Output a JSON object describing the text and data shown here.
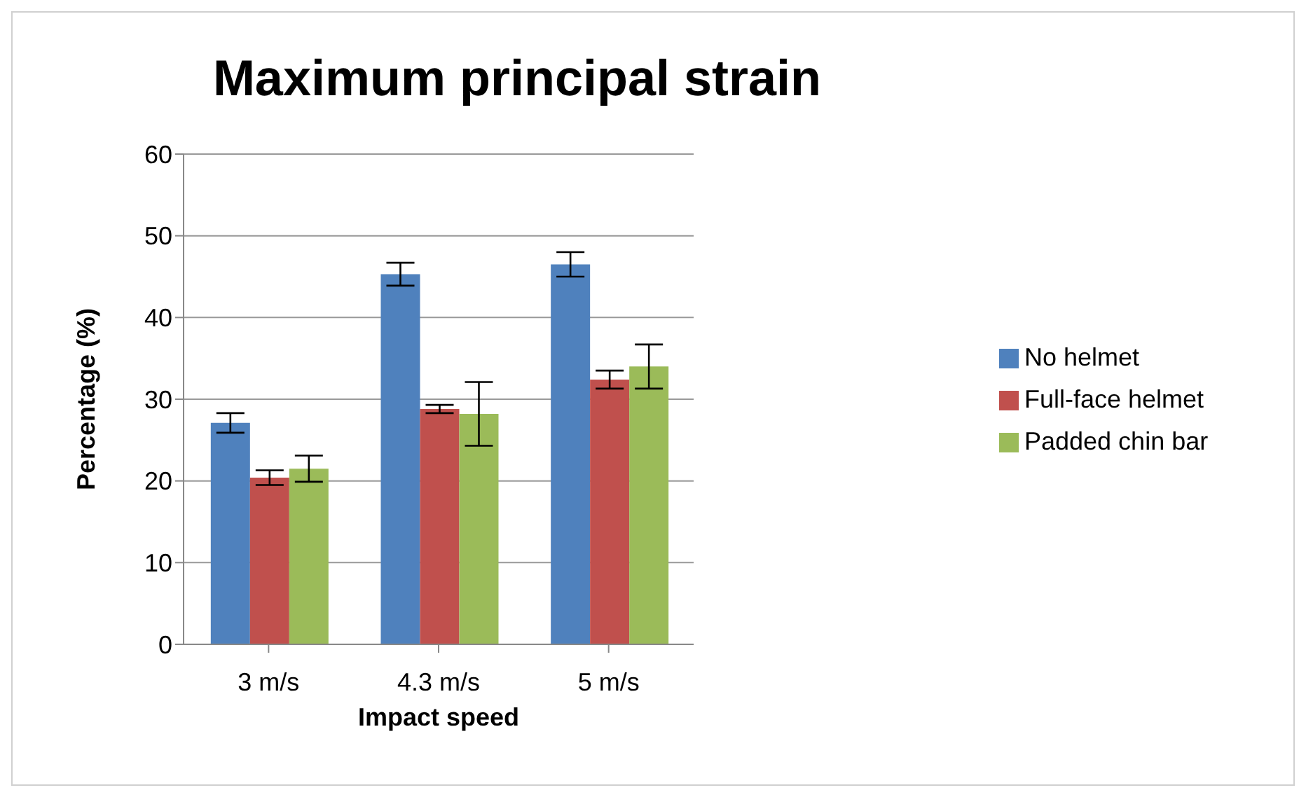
{
  "chart_data": {
    "type": "bar",
    "title": "Maximum principal strain",
    "xlabel": "Impact speed",
    "ylabel": "Percentage (%)",
    "categories": [
      "3 m/s",
      "4.3 m/s",
      "5 m/s"
    ],
    "series": [
      {
        "name": "No helmet",
        "color": "#4f81bd",
        "values": [
          27.1,
          45.3,
          46.5
        ],
        "errors": [
          1.2,
          1.4,
          1.5
        ]
      },
      {
        "name": "Full-face helmet",
        "color": "#c0504d",
        "values": [
          20.4,
          28.8,
          32.4
        ],
        "errors": [
          0.9,
          0.5,
          1.1
        ]
      },
      {
        "name": "Padded chin bar",
        "color": "#9bbb59",
        "values": [
          21.5,
          28.2,
          34.0
        ],
        "errors": [
          1.6,
          3.9,
          2.7
        ]
      }
    ],
    "ylim": [
      0,
      60
    ],
    "yticks": [
      0,
      10,
      20,
      30,
      40,
      50,
      60
    ],
    "grid": "y",
    "legend": "right"
  }
}
